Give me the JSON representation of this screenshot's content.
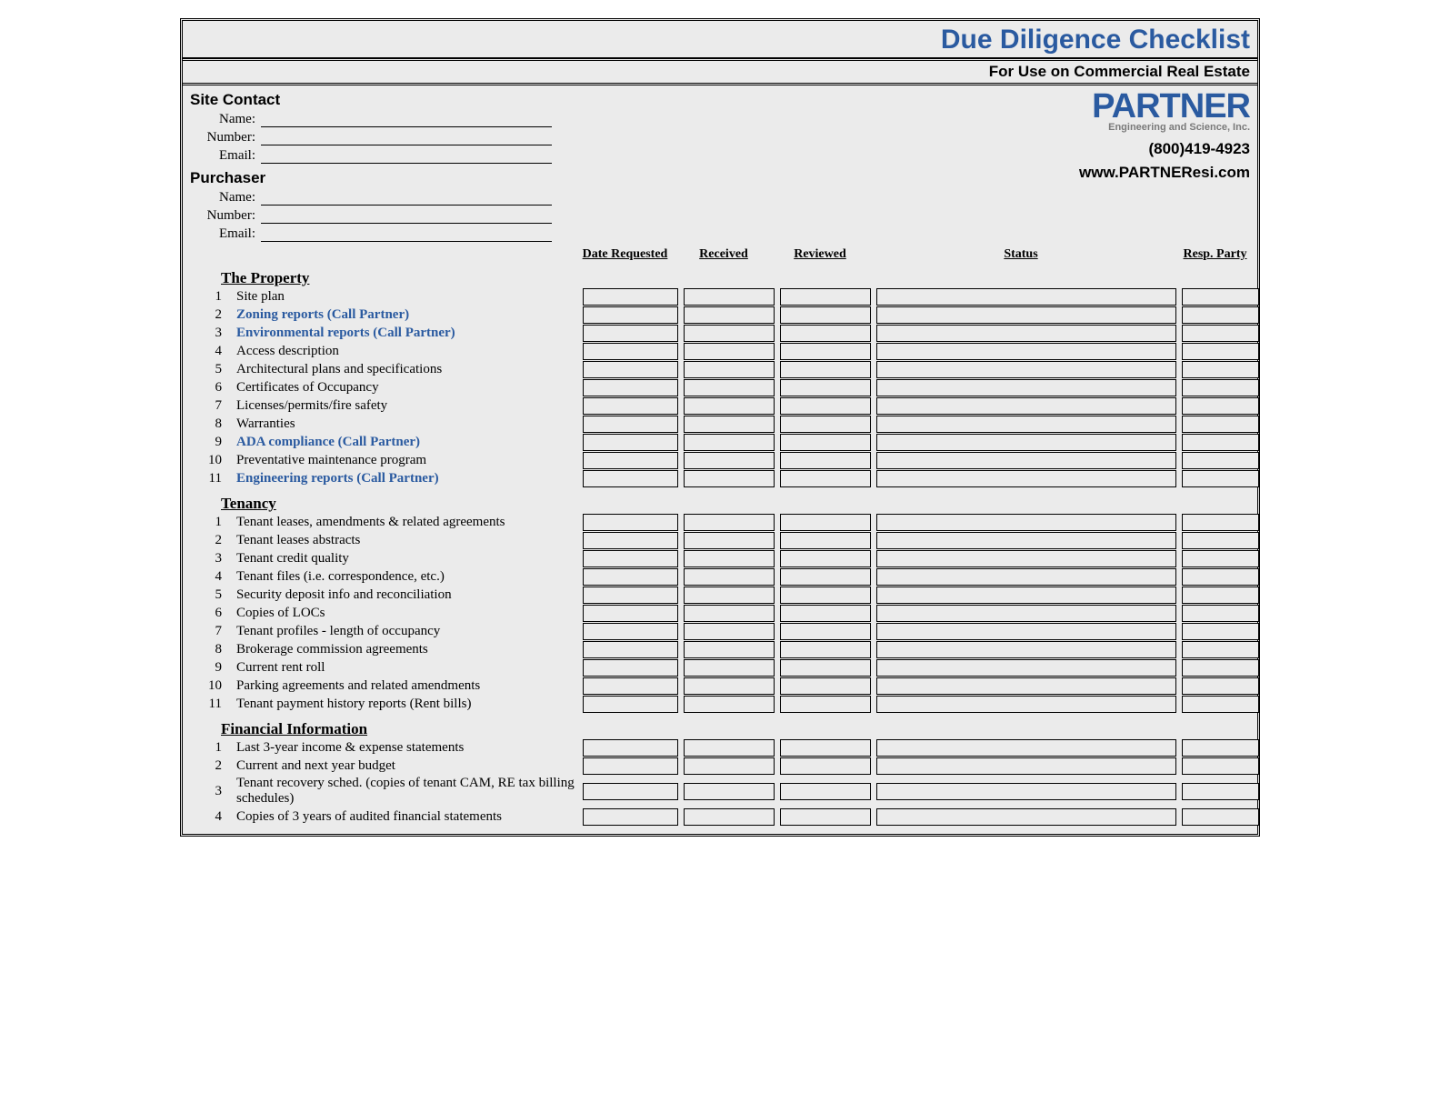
{
  "title": "Due Diligence Checklist",
  "subtitle": "For Use on Commercial Real Estate",
  "logo": {
    "main": "PARTNER",
    "sub": "Engineering and Science, Inc."
  },
  "phone": "(800)419-4923",
  "website": "www.PARTNEResi.com",
  "colors": {
    "accent": "#2a5aa0",
    "background": "#ebebeb",
    "text": "#000000",
    "logo_sub": "#7a7a7a"
  },
  "sections": {
    "site_contact": {
      "header": "Site Contact",
      "fields": {
        "name": "Name:",
        "number": "Number:",
        "email": "Email:"
      }
    },
    "purchaser": {
      "header": "Purchaser",
      "fields": {
        "name": "Name:",
        "number": "Number:",
        "email": "Email:"
      }
    }
  },
  "columns": {
    "date_requested": "Date Requested",
    "received": "Received",
    "reviewed": "Reviewed",
    "status": "Status",
    "resp_party": "Resp. Party"
  },
  "groups": [
    {
      "header": "The Property",
      "items": [
        {
          "n": "1",
          "label": "Site plan",
          "link": false
        },
        {
          "n": "2",
          "label": "Zoning reports (Call Partner)",
          "link": true
        },
        {
          "n": "3",
          "label": "Environmental reports (Call Partner)",
          "link": true
        },
        {
          "n": "4",
          "label": "Access description",
          "link": false
        },
        {
          "n": "5",
          "label": "Architectural plans and specifications",
          "link": false
        },
        {
          "n": "6",
          "label": "Certificates of Occupancy",
          "link": false
        },
        {
          "n": "7",
          "label": "Licenses/permits/fire safety",
          "link": false
        },
        {
          "n": "8",
          "label": "Warranties",
          "link": false
        },
        {
          "n": "9",
          "label": "ADA compliance (Call Partner)",
          "link": true
        },
        {
          "n": "10",
          "label": "Preventative maintenance program",
          "link": false
        },
        {
          "n": "11",
          "label": "Engineering reports (Call Partner)",
          "link": true
        }
      ]
    },
    {
      "header": "Tenancy",
      "items": [
        {
          "n": "1",
          "label": "Tenant leases, amendments & related agreements",
          "link": false
        },
        {
          "n": "2",
          "label": "Tenant leases abstracts",
          "link": false
        },
        {
          "n": "3",
          "label": "Tenant credit quality",
          "link": false
        },
        {
          "n": "4",
          "label": "Tenant files (i.e. correspondence, etc.)",
          "link": false
        },
        {
          "n": "5",
          "label": "Security deposit info and reconciliation",
          "link": false
        },
        {
          "n": "6",
          "label": "Copies of LOCs",
          "link": false
        },
        {
          "n": "7",
          "label": "Tenant profiles - length of occupancy",
          "link": false
        },
        {
          "n": "8",
          "label": "Brokerage commission agreements",
          "link": false
        },
        {
          "n": "9",
          "label": "Current rent roll",
          "link": false
        },
        {
          "n": "10",
          "label": "Parking agreements and related amendments",
          "link": false
        },
        {
          "n": "11",
          "label": "Tenant payment history reports (Rent bills)",
          "link": false
        }
      ]
    },
    {
      "header": "Financial Information",
      "items": [
        {
          "n": "1",
          "label": "Last 3-year income & expense statements",
          "link": false
        },
        {
          "n": "2",
          "label": "Current and next year budget",
          "link": false
        },
        {
          "n": "3",
          "label": "Tenant recovery sched. (copies of tenant CAM, RE tax billing schedules)",
          "link": false,
          "wrap": true
        },
        {
          "n": "4",
          "label": "Copies of 3 years of audited financial statements",
          "link": false
        }
      ]
    }
  ]
}
